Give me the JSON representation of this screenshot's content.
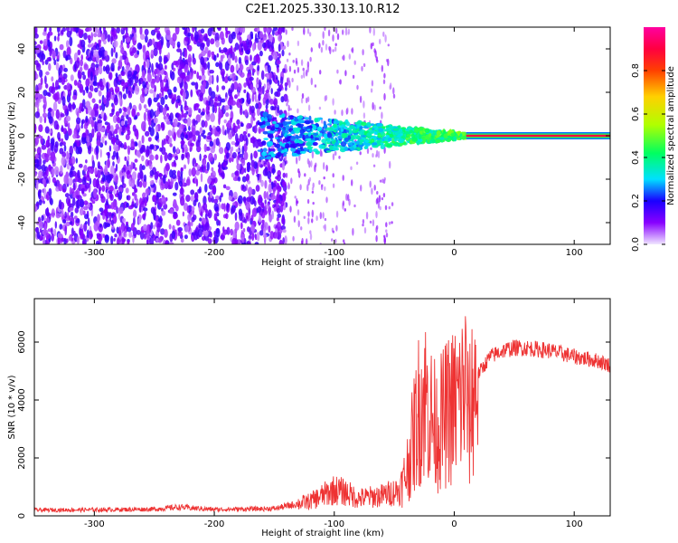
{
  "title": "C2E1.2025.330.13.10.R12",
  "colorbar": {
    "label": "Normalized spectral amplitude",
    "range": [
      0,
      1
    ],
    "tick_values": [
      0.0,
      0.2,
      0.4,
      0.6,
      0.8
    ],
    "tick_labels": [
      "0.0",
      "0.2",
      "0.4",
      "0.6",
      "0.8"
    ],
    "colors": [
      "#f0e6ff",
      "#8800ff",
      "#1a00ff",
      "#00e0ff",
      "#00ff60",
      "#b0ff00",
      "#ffd000",
      "#ff4000",
      "#ff0040",
      "#ff00a0"
    ]
  },
  "chart_data": [
    {
      "type": "heatmap",
      "name": "spectrogram",
      "xlabel": "Height of straight line (km)",
      "ylabel": "Frequency (Hz)",
      "xlim": [
        -350,
        130
      ],
      "ylim": [
        -50,
        50
      ],
      "x_ticks": [
        -300,
        -200,
        -100,
        0,
        100
      ],
      "x_tick_labels": [
        "-300",
        "-200",
        "-100",
        "0",
        "100"
      ],
      "y_ticks": [
        -40,
        -20,
        0,
        20,
        40
      ],
      "y_tick_labels": [
        "-40",
        "-20",
        "0",
        "20",
        "40"
      ],
      "features": {
        "noise_region_km": [
          -350,
          -140
        ],
        "noise_level": 0.12,
        "transition_region_km": [
          -140,
          10
        ],
        "tone_frequency_hz": 0,
        "tone_start_km": 10,
        "tone_level": 0.9
      }
    },
    {
      "type": "line",
      "name": "snr",
      "xlabel": "Height of straight line (km)",
      "ylabel": "SNR (10 * v/v)",
      "xlim": [
        -350,
        130
      ],
      "ylim": [
        0,
        7500
      ],
      "x_ticks": [
        -300,
        -200,
        -100,
        0,
        100
      ],
      "x_tick_labels": [
        "-300",
        "-200",
        "-100",
        "0",
        "100"
      ],
      "y_ticks": [
        0,
        2000,
        4000,
        6000
      ],
      "y_tick_labels": [
        "0",
        "2000",
        "4000",
        "6000"
      ],
      "color": "#ee3333",
      "series": [
        {
          "name": "SNR",
          "x": [
            -350,
            -300,
            -250,
            -230,
            -200,
            -150,
            -120,
            -100,
            -90,
            -80,
            -60,
            -45,
            -40,
            -35,
            -30,
            -25,
            -20,
            -15,
            -10,
            -5,
            0,
            5,
            10,
            12,
            15,
            20,
            25,
            30,
            40,
            50,
            60,
            80,
            100,
            120,
            130
          ],
          "y": [
            200,
            210,
            230,
            300,
            220,
            250,
            500,
            900,
            800,
            600,
            700,
            900,
            1500,
            2500,
            3600,
            4200,
            3500,
            3000,
            3300,
            3600,
            3800,
            4000,
            4600,
            3000,
            4200,
            4900,
            5200,
            5500,
            5700,
            5800,
            5800,
            5700,
            5500,
            5350,
            5200
          ]
        }
      ]
    }
  ]
}
